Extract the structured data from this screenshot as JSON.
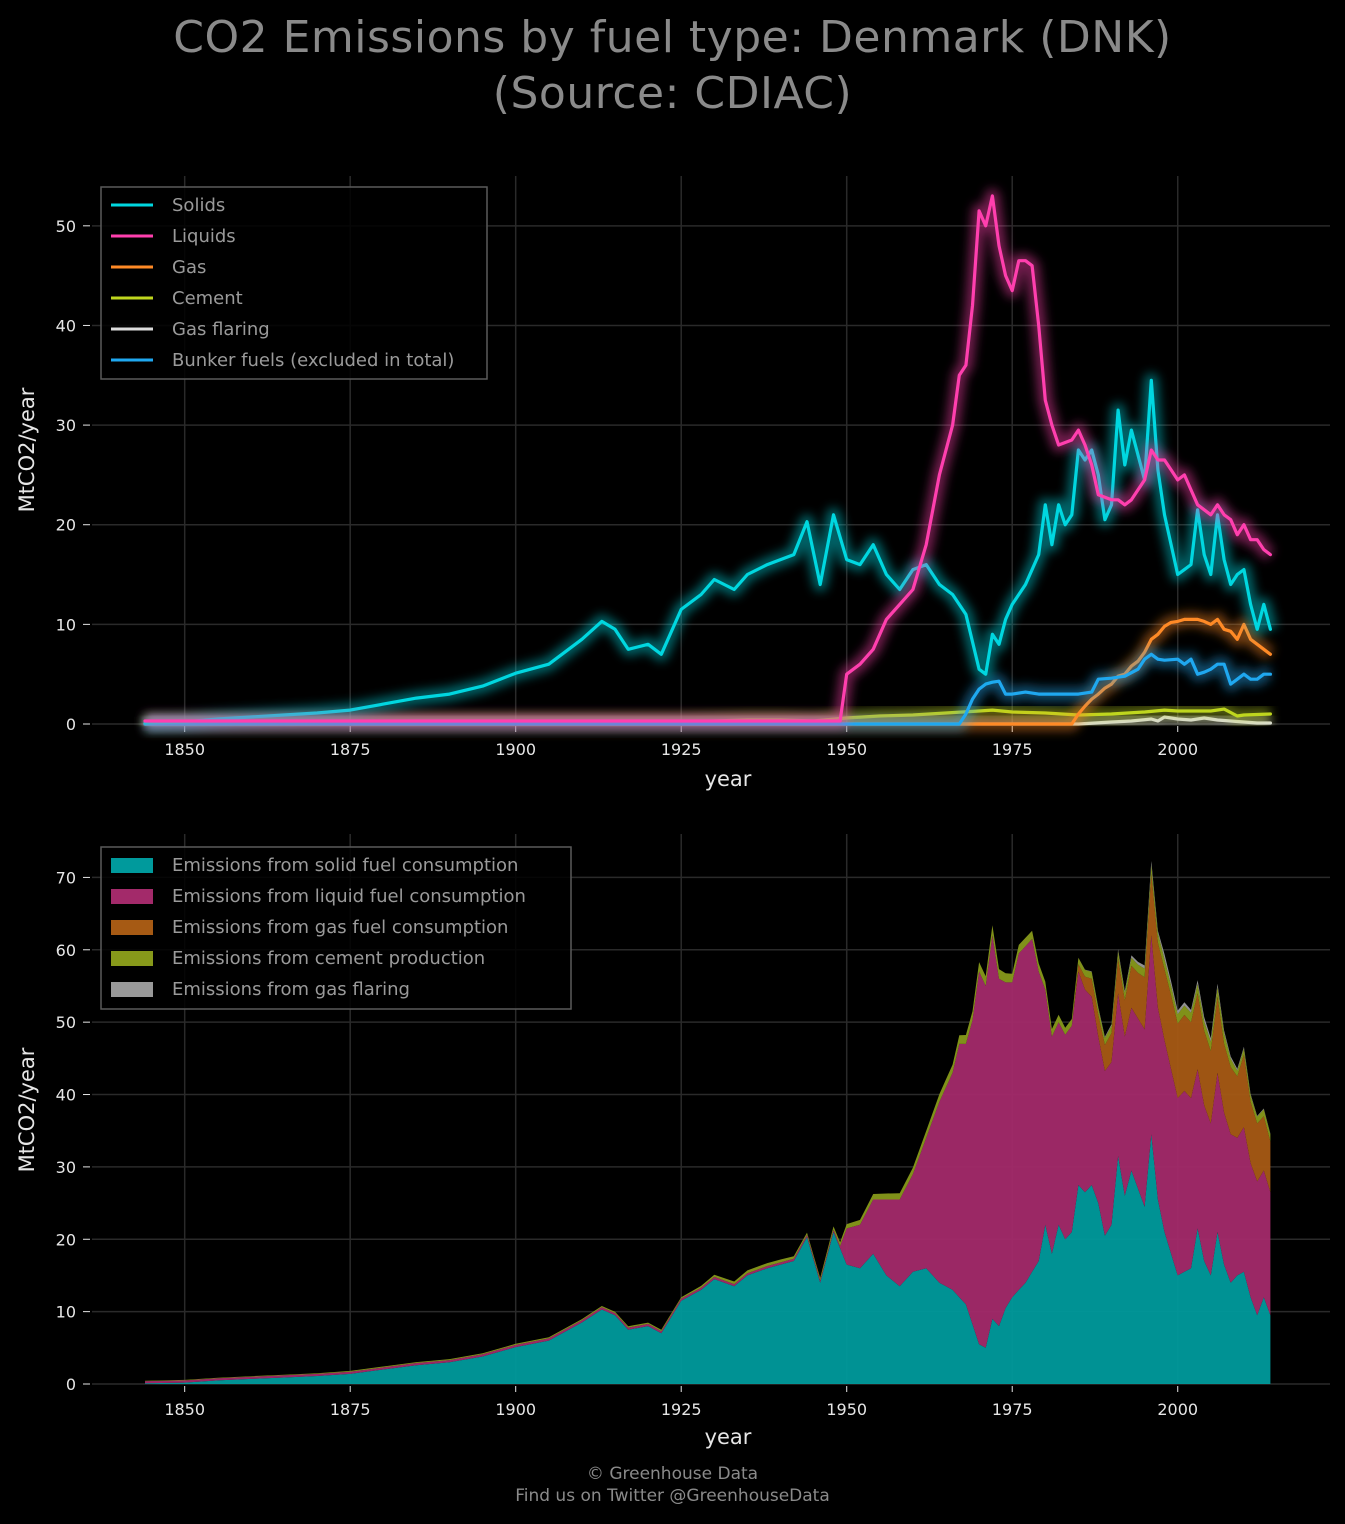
{
  "title": {
    "line1": "CO2 Emissions by fuel type: Denmark (DNK)",
    "line2": "(Source: CDIAC)"
  },
  "footer": {
    "line1": "© Greenhouse Data",
    "line2": "Find us on Twitter @GreenhouseData"
  },
  "chart_data": [
    {
      "type": "line",
      "xlabel": "year",
      "ylabel": "MtCO2/year",
      "xlim": [
        1836,
        2023
      ],
      "ylim": [
        0,
        55
      ],
      "xticks": [
        1850,
        1875,
        1900,
        1925,
        1950,
        1975,
        2000
      ],
      "yticks": [
        0,
        10,
        20,
        30,
        40,
        50
      ],
      "grid": true,
      "legend_position": "top-left",
      "series": [
        {
          "name": "Solids",
          "color": "#00d7e0",
          "x": [
            1844,
            1850,
            1855,
            1860,
            1865,
            1870,
            1875,
            1880,
            1885,
            1890,
            1895,
            1900,
            1905,
            1910,
            1913,
            1915,
            1917,
            1920,
            1922,
            1925,
            1928,
            1930,
            1933,
            1935,
            1938,
            1940,
            1942,
            1944,
            1946,
            1948,
            1950,
            1952,
            1954,
            1956,
            1958,
            1960,
            1962,
            1964,
            1966,
            1968,
            1970,
            1971,
            1972,
            1973,
            1974,
            1975,
            1977,
            1979,
            1980,
            1981,
            1982,
            1983,
            1984,
            1985,
            1986,
            1987,
            1988,
            1989,
            1990,
            1991,
            1992,
            1993,
            1995,
            1996,
            1997,
            1998,
            1999,
            2000,
            2001,
            2002,
            2003,
            2004,
            2005,
            2006,
            2007,
            2008,
            2009,
            2010,
            2011,
            2012,
            2013,
            2014
          ],
          "y": [
            0.1,
            0.2,
            0.5,
            0.7,
            0.9,
            1.1,
            1.4,
            2.0,
            2.6,
            3.0,
            3.8,
            5.1,
            6.0,
            8.5,
            10.3,
            9.5,
            7.5,
            8.0,
            7.0,
            11.5,
            13.0,
            14.5,
            13.5,
            15.0,
            16.0,
            16.5,
            17.0,
            20.3,
            14.0,
            21.0,
            16.5,
            16.0,
            18.0,
            15.0,
            13.5,
            15.5,
            16.0,
            14.0,
            13.0,
            11.0,
            5.5,
            5.0,
            9.0,
            8.0,
            10.5,
            12.0,
            14.0,
            17.0,
            22.0,
            18.0,
            22.0,
            20.0,
            21.0,
            27.5,
            26.5,
            27.5,
            25.0,
            20.5,
            22.0,
            31.5,
            26.0,
            29.5,
            24.5,
            34.5,
            25.5,
            21.0,
            18.0,
            15.0,
            15.5,
            16.0,
            21.5,
            17.0,
            15.0,
            21.0,
            16.5,
            14.0,
            15.0,
            15.5,
            12.0,
            9.5,
            12.0,
            9.5
          ]
        },
        {
          "name": "Liquids",
          "color": "#ff3fae",
          "x": [
            1844,
            1949,
            1950,
            1952,
            1954,
            1956,
            1958,
            1960,
            1962,
            1964,
            1966,
            1967,
            1968,
            1969,
            1970,
            1971,
            1972,
            1973,
            1974,
            1975,
            1976,
            1977,
            1978,
            1979,
            1980,
            1981,
            1982,
            1984,
            1985,
            1986,
            1987,
            1988,
            1990,
            1991,
            1992,
            1993,
            1995,
            1996,
            1997,
            1998,
            1999,
            2000,
            2001,
            2002,
            2003,
            2004,
            2005,
            2006,
            2007,
            2008,
            2009,
            2010,
            2011,
            2012,
            2013,
            2014
          ],
          "y": [
            0.3,
            0.3,
            5.0,
            6.0,
            7.5,
            10.5,
            12.0,
            13.5,
            18.0,
            25.0,
            30.0,
            35.0,
            36.0,
            42.0,
            51.5,
            50.0,
            53.0,
            48.0,
            45.0,
            43.5,
            46.5,
            46.5,
            46.0,
            40.0,
            32.5,
            30.0,
            28.0,
            28.5,
            29.5,
            28.0,
            26.0,
            23.0,
            22.5,
            22.5,
            22.0,
            22.5,
            24.5,
            27.5,
            26.5,
            26.5,
            25.5,
            24.5,
            25.0,
            23.5,
            22.0,
            21.5,
            21.0,
            22.0,
            21.0,
            20.5,
            19.0,
            20.0,
            18.5,
            18.5,
            17.5,
            17.0
          ]
        },
        {
          "name": "Gas",
          "color": "#ff8a26",
          "x": [
            1844,
            1984,
            1985,
            1986,
            1987,
            1988,
            1989,
            1990,
            1991,
            1992,
            1993,
            1994,
            1995,
            1996,
            1997,
            1998,
            1999,
            2000,
            2001,
            2002,
            2003,
            2004,
            2005,
            2006,
            2007,
            2008,
            2009,
            2010,
            2011,
            2012,
            2013,
            2014
          ],
          "y": [
            0,
            0,
            1.0,
            1.8,
            2.5,
            3.0,
            3.6,
            4.0,
            4.8,
            5.0,
            5.8,
            6.3,
            7.2,
            8.5,
            9.0,
            9.8,
            10.2,
            10.3,
            10.5,
            10.5,
            10.5,
            10.3,
            10.0,
            10.5,
            9.5,
            9.3,
            8.5,
            10.0,
            8.5,
            8.0,
            7.5,
            7.0
          ]
        },
        {
          "name": "Cement",
          "color": "#bfd61e",
          "x": [
            1844,
            1925,
            1930,
            1935,
            1940,
            1945,
            1950,
            1955,
            1960,
            1965,
            1970,
            1972,
            1975,
            1980,
            1985,
            1990,
            1995,
            1998,
            2000,
            2005,
            2007,
            2009,
            2010,
            2014
          ],
          "y": [
            0.05,
            0.2,
            0.3,
            0.4,
            0.4,
            0.3,
            0.6,
            0.8,
            0.9,
            1.1,
            1.3,
            1.4,
            1.2,
            1.1,
            0.9,
            1.0,
            1.2,
            1.4,
            1.3,
            1.3,
            1.5,
            0.8,
            0.9,
            1.0
          ]
        },
        {
          "name": "Gas flaring",
          "color": "#dcdcdc",
          "x": [
            1844,
            1985,
            1990,
            1993,
            1996,
            1997,
            1998,
            2000,
            2002,
            2004,
            2006,
            2008,
            2010,
            2012,
            2014
          ],
          "y": [
            0,
            0,
            0.2,
            0.3,
            0.5,
            0.3,
            0.7,
            0.5,
            0.4,
            0.6,
            0.4,
            0.3,
            0.2,
            0.1,
            0.1
          ]
        },
        {
          "name": "Bunker fuels (excluded in total)",
          "color": "#1fa8f0",
          "x": [
            1844,
            1967,
            1968,
            1969,
            1970,
            1971,
            1972,
            1973,
            1974,
            1975,
            1977,
            1979,
            1981,
            1983,
            1985,
            1987,
            1988,
            1990,
            1992,
            1994,
            1995,
            1996,
            1997,
            1998,
            2000,
            2001,
            2002,
            2003,
            2004,
            2005,
            2006,
            2007,
            2008,
            2009,
            2010,
            2011,
            2012,
            2013,
            2014
          ],
          "y": [
            0,
            0,
            1.0,
            2.5,
            3.5,
            4.0,
            4.2,
            4.3,
            3.0,
            3.0,
            3.2,
            3.0,
            3.0,
            3.0,
            3.0,
            3.2,
            4.5,
            4.6,
            4.8,
            5.5,
            6.5,
            7.0,
            6.5,
            6.4,
            6.5,
            6.0,
            6.5,
            5.0,
            5.2,
            5.5,
            6.0,
            6.0,
            4.0,
            4.5,
            5.0,
            4.5,
            4.5,
            5.0,
            5.0
          ]
        }
      ]
    },
    {
      "type": "area",
      "stacked": true,
      "xlabel": "year",
      "ylabel": "MtCO2/year",
      "xlim": [
        1836,
        2023
      ],
      "ylim": [
        0,
        76
      ],
      "xticks": [
        1850,
        1875,
        1900,
        1925,
        1950,
        1975,
        2000
      ],
      "yticks": [
        0,
        10,
        20,
        30,
        40,
        50,
        60,
        70
      ],
      "grid": true,
      "legend_position": "top-left",
      "series": [
        {
          "name": "Emissions from solid fuel consumption",
          "color": "#009a9c"
        },
        {
          "name": "Emissions from liquid fuel consumption",
          "color": "#a32a6a"
        },
        {
          "name": "Emissions from gas fuel consumption",
          "color": "#a65a14"
        },
        {
          "name": "Emissions from cement production",
          "color": "#87991a"
        },
        {
          "name": "Emissions from gas flaring",
          "color": "#999999"
        }
      ]
    }
  ]
}
